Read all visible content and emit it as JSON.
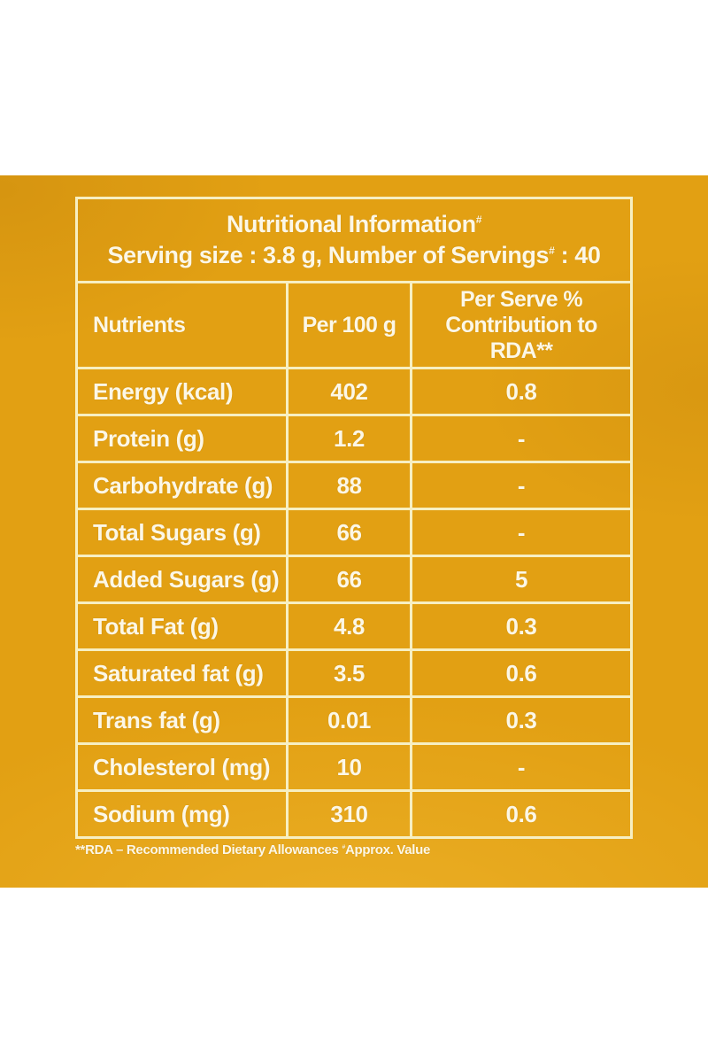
{
  "colors": {
    "background_yellow": "#E2A013",
    "border_cream": "#F7EFC2",
    "text_cream": "#FCF7E6",
    "page_white": "#FFFFFF"
  },
  "label": {
    "title": "Nutritional Information",
    "title_sup": "#",
    "serving_before": "Serving size : 3.8 g, Number of Servings",
    "serving_sup": "#",
    "serving_after": " : 40",
    "columns": [
      "Nutrients",
      "Per 100 g",
      "Per Serve % Contribution to RDA**"
    ],
    "footnote_before": "**RDA – Recommended Dietary Allowances ",
    "footnote_sup": "#",
    "footnote_after": "Approx. Value"
  },
  "table": {
    "rows": [
      {
        "nutrient": "Energy (kcal)",
        "per_100g": "402",
        "per_serve_rda": "0.8"
      },
      {
        "nutrient": "Protein (g)",
        "per_100g": "1.2",
        "per_serve_rda": "-"
      },
      {
        "nutrient": "Carbohydrate (g)",
        "per_100g": "88",
        "per_serve_rda": "-"
      },
      {
        "nutrient": "Total Sugars (g)",
        "per_100g": "66",
        "per_serve_rda": "-"
      },
      {
        "nutrient": "Added Sugars (g)",
        "per_100g": "66",
        "per_serve_rda": "5"
      },
      {
        "nutrient": "Total Fat (g)",
        "per_100g": "4.8",
        "per_serve_rda": "0.3"
      },
      {
        "nutrient": "Saturated fat (g)",
        "per_100g": "3.5",
        "per_serve_rda": "0.6"
      },
      {
        "nutrient": "Trans fat (g)",
        "per_100g": "0.01",
        "per_serve_rda": "0.3"
      },
      {
        "nutrient": "Cholesterol (mg)",
        "per_100g": "10",
        "per_serve_rda": "-"
      },
      {
        "nutrient": "Sodium (mg)",
        "per_100g": "310",
        "per_serve_rda": "0.6"
      }
    ]
  }
}
